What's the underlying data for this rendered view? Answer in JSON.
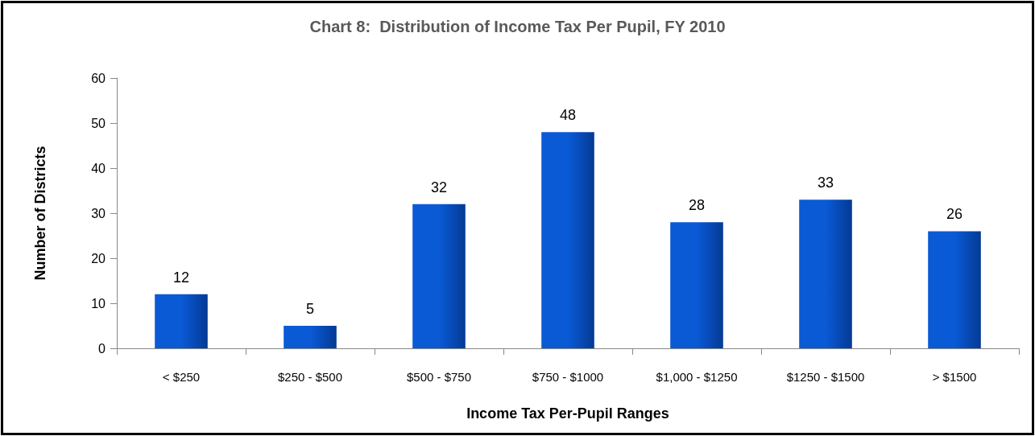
{
  "chart_data": {
    "type": "bar",
    "title": "Chart 8:  Distribution of Income Tax Per Pupil, FY 2010",
    "xlabel": "Income Tax Per-Pupil Ranges",
    "ylabel": "Number of Districts",
    "categories": [
      "< $250",
      "$250 - $500",
      "$500 - $750",
      "$750 - $1000",
      "$1,000 - $1250",
      "$1250 - $1500",
      "> $1500"
    ],
    "values": [
      12,
      5,
      32,
      48,
      28,
      33,
      26
    ],
    "color": "#0a5ad6",
    "ylim": [
      0,
      60
    ],
    "yticks": [
      0,
      10,
      20,
      30,
      40,
      50,
      60
    ],
    "grid": false,
    "data_labels": true
  }
}
